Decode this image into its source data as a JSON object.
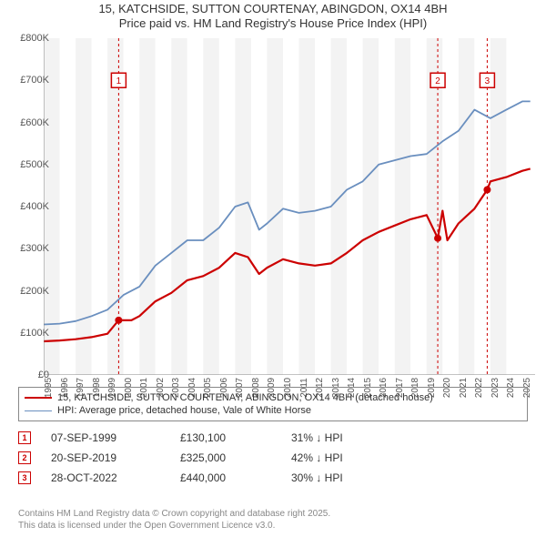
{
  "title_line1": "15, KATCHSIDE, SUTTON COURTENAY, ABINGDON, OX14 4BH",
  "title_line2": "Price paid vs. HM Land Registry's House Price Index (HPI)",
  "title_fontsize": 13,
  "title_color": "#333333",
  "chart": {
    "type": "line",
    "background_color": "#ffffff",
    "shade_band_color": "#f3f3f3",
    "grid_color": "#ffffff",
    "axis_color": "#888888",
    "x": {
      "min": 1995,
      "max": 2025.8,
      "ticks": [
        1995,
        1996,
        1997,
        1998,
        1999,
        2000,
        2001,
        2002,
        2003,
        2004,
        2005,
        2006,
        2007,
        2008,
        2009,
        2010,
        2011,
        2012,
        2013,
        2014,
        2015,
        2016,
        2017,
        2018,
        2019,
        2020,
        2021,
        2022,
        2023,
        2024,
        2025
      ],
      "tick_fontsize": 10
    },
    "y": {
      "min": 0,
      "max": 800000,
      "ticks": [
        0,
        100000,
        200000,
        300000,
        400000,
        500000,
        600000,
        700000,
        800000
      ],
      "tick_labels": [
        "£0",
        "£100K",
        "£200K",
        "£300K",
        "£400K",
        "£500K",
        "£600K",
        "£700K",
        "£800K"
      ],
      "tick_fontsize": 11
    },
    "series": [
      {
        "id": "price_paid",
        "label": "15, KATCHSIDE, SUTTON COURTENAY, ABINGDON, OX14 4BH (detached house)",
        "color": "#cc0000",
        "line_width": 2.2,
        "x": [
          1995,
          1996,
          1997,
          1998,
          1999,
          1999.7,
          2000.5,
          2001,
          2002,
          2003,
          2004,
          2005,
          2006,
          2007,
          2007.8,
          2008.5,
          2009,
          2010,
          2011,
          2012,
          2013,
          2014,
          2015,
          2016,
          2017,
          2018,
          2019,
          2019.7,
          2020,
          2020.3,
          2021,
          2022,
          2022.8,
          2023,
          2024,
          2025,
          2025.5
        ],
        "y": [
          80000,
          82000,
          85000,
          90000,
          98000,
          130100,
          130000,
          140000,
          175000,
          195000,
          225000,
          235000,
          255000,
          290000,
          280000,
          240000,
          255000,
          275000,
          265000,
          260000,
          265000,
          290000,
          320000,
          340000,
          355000,
          370000,
          380000,
          325000,
          390000,
          320000,
          360000,
          395000,
          440000,
          460000,
          470000,
          485000,
          490000
        ],
        "markers": [
          {
            "index": 5,
            "style": "circle",
            "size": 4
          },
          {
            "index": 27,
            "style": "circle",
            "size": 4
          },
          {
            "index": 32,
            "style": "circle",
            "size": 4
          }
        ]
      },
      {
        "id": "hpi",
        "label": "HPI: Average price, detached house, Vale of White Horse",
        "color": "#6a8fbf",
        "line_width": 1.8,
        "x": [
          1995,
          1996,
          1997,
          1998,
          1999,
          2000,
          2001,
          2002,
          2003,
          2004,
          2005,
          2006,
          2007,
          2007.8,
          2008.5,
          2009,
          2010,
          2011,
          2012,
          2013,
          2014,
          2015,
          2016,
          2017,
          2018,
          2019,
          2020,
          2021,
          2022,
          2023,
          2024,
          2025,
          2025.5
        ],
        "y": [
          120000,
          122000,
          128000,
          140000,
          155000,
          190000,
          210000,
          260000,
          290000,
          320000,
          320000,
          350000,
          400000,
          410000,
          345000,
          360000,
          395000,
          385000,
          390000,
          400000,
          440000,
          460000,
          500000,
          510000,
          520000,
          525000,
          555000,
          580000,
          630000,
          610000,
          630000,
          650000,
          650000
        ]
      }
    ],
    "event_lines": [
      {
        "id": 1,
        "x": 1999.7,
        "label": "1",
        "color": "#cc0000",
        "dash": "3,3",
        "box_y": 700000
      },
      {
        "id": 2,
        "x": 2019.7,
        "label": "2",
        "color": "#cc0000",
        "dash": "3,3",
        "box_y": 700000
      },
      {
        "id": 3,
        "x": 2022.8,
        "label": "3",
        "color": "#cc0000",
        "dash": "3,3",
        "box_y": 700000
      }
    ]
  },
  "legend": [
    {
      "color": "#cc0000",
      "width": 2.2,
      "label": "15, KATCHSIDE, SUTTON COURTENAY, ABINGDON, OX14 4BH (detached house)"
    },
    {
      "color": "#6a8fbf",
      "width": 1.8,
      "label": "HPI: Average price, detached house, Vale of White Horse"
    }
  ],
  "events": [
    {
      "num": "1",
      "color": "#cc0000",
      "date": "07-SEP-1999",
      "price": "£130,100",
      "delta": "31% ↓ HPI"
    },
    {
      "num": "2",
      "color": "#cc0000",
      "date": "20-SEP-2019",
      "price": "£325,000",
      "delta": "42% ↓ HPI"
    },
    {
      "num": "3",
      "color": "#cc0000",
      "date": "28-OCT-2022",
      "price": "£440,000",
      "delta": "30% ↓ HPI"
    }
  ],
  "footer_line1": "Contains HM Land Registry data © Crown copyright and database right 2025.",
  "footer_line2": "This data is licensed under the Open Government Licence v3.0."
}
